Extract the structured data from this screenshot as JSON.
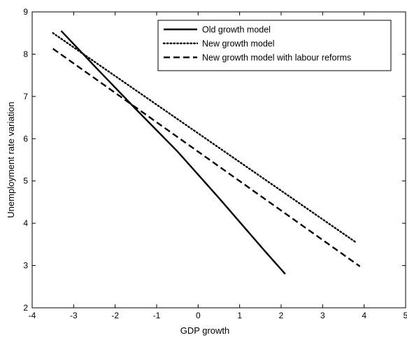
{
  "chart_data": {
    "type": "line",
    "title": "",
    "xlabel": "GDP growth",
    "ylabel": "Unemployment rate variation",
    "xlim": [
      -4,
      5
    ],
    "ylim": [
      2,
      9
    ],
    "xticks": [
      -4,
      -3,
      -2,
      -1,
      0,
      1,
      2,
      3,
      4,
      5
    ],
    "yticks": [
      2,
      3,
      4,
      5,
      6,
      7,
      8,
      9
    ],
    "xtick_labels": [
      "-4",
      "-3",
      "-2",
      "-1",
      "0",
      "1",
      "2",
      "3",
      "4",
      "5"
    ],
    "ytick_labels": [
      "2",
      "3",
      "4",
      "5",
      "6",
      "7",
      "8",
      "9"
    ],
    "grid": false,
    "legend_position": "top-right",
    "series": [
      {
        "name": "Old growth model",
        "style": "solid",
        "color": "#000000",
        "x": [
          -3.3,
          -2.5,
          -1.5,
          -0.5,
          0.5,
          1.6,
          2.1
        ],
        "y": [
          8.55,
          7.72,
          6.7,
          5.7,
          4.6,
          3.35,
          2.8
        ]
      },
      {
        "name": "New growth model",
        "style": "dotted",
        "color": "#000000",
        "x": [
          -3.5,
          3.8
        ],
        "y": [
          8.5,
          3.55
        ]
      },
      {
        "name": "New growth model with labour reforms",
        "style": "dashed",
        "color": "#000000",
        "x": [
          -3.5,
          3.9
        ],
        "y": [
          8.13,
          2.98
        ]
      }
    ]
  }
}
